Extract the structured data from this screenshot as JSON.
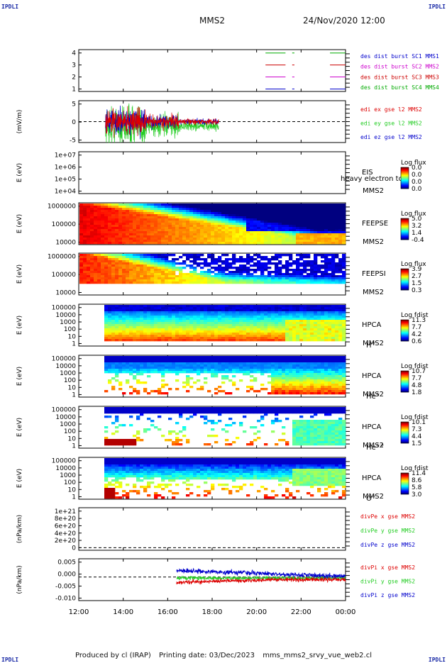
{
  "corner_labels": {
    "top_left": "IPDLI",
    "top_right": "IPDLI",
    "bottom_left": "IPDLI",
    "bottom_right": "IPDLI"
  },
  "header": {
    "spacecraft": "MMS2",
    "datetime": "24/Nov/2020 12:00"
  },
  "footer": {
    "produced_by": "Produced by cl (IRAP)",
    "printing_date": "Printing date: 03/Dec/2023",
    "filename": "mms_mms2_srvy_vue_web2.cl"
  },
  "colors": {
    "mms1": "#0000cc",
    "mms2": "#cc00cc",
    "mms3": "#cc0000",
    "mms4": "#00aa00",
    "x": "#dd0000",
    "y": "#22cc22",
    "z": "#0000cc",
    "label": "#1a2aa6"
  },
  "chart_data": [
    {
      "panel": "burst",
      "type": "line",
      "yticks": [
        "4",
        "3",
        "2",
        "1"
      ],
      "legend": [
        {
          "text": "des dist burst SC1 MMS1",
          "color": "#0000cc"
        },
        {
          "text": "des dist burst SC2 MMS2",
          "color": "#cc00cc"
        },
        {
          "text": "des dist burst SC3 MMS3",
          "color": "#cc0000"
        },
        {
          "text": "des dist burst SC4 MMS4",
          "color": "#00aa00"
        }
      ],
      "series": [
        {
          "sc": 4,
          "color": "#00aa00",
          "segments": [
            [
              20.4,
              21.3
            ],
            [
              21.6,
              21.7
            ],
            [
              23.3,
              24.0
            ]
          ]
        },
        {
          "sc": 3,
          "color": "#cc0000",
          "segments": [
            [
              20.4,
              21.3
            ],
            [
              21.6,
              21.7
            ],
            [
              23.3,
              24.0
            ]
          ]
        },
        {
          "sc": 2,
          "color": "#cc00cc",
          "segments": [
            [
              20.4,
              21.3
            ],
            [
              21.6,
              21.7
            ],
            [
              23.3,
              24.0
            ]
          ]
        },
        {
          "sc": 1,
          "color": "#0000cc",
          "segments": [
            [
              20.4,
              21.3
            ],
            [
              21.6,
              21.7
            ],
            [
              23.3,
              24.0
            ]
          ]
        }
      ]
    },
    {
      "panel": "efield",
      "type": "line",
      "ylabel": "(mV/m)",
      "yticks": [
        "5",
        "0",
        "-5"
      ],
      "ylim": [
        -7,
        7
      ],
      "legend": [
        {
          "text": "edi ex gse l2 MMS2",
          "color": "#dd0000"
        },
        {
          "text": "edi ey gse l2 MMS2",
          "color": "#22cc22"
        },
        {
          "text": "edi ez gse l2 MMS2",
          "color": "#0000cc"
        }
      ],
      "data_range": [
        13.2,
        18.3
      ]
    },
    {
      "panel": "eis",
      "type": "heatmap",
      "ylabel": "E (eV)",
      "yticks": [
        "1e+07",
        "1e+06",
        "1e+05",
        "1e+04"
      ],
      "instrument": "EIS",
      "sc": "MMS2",
      "overlay": "heavy electron to",
      "colorbar": {
        "title": "Log flux",
        "ticks": [
          "0.0",
          "0.0",
          "0.0",
          "0.0"
        ]
      }
    },
    {
      "panel": "feeps_e",
      "type": "heatmap",
      "ylabel": "E (eV)",
      "yticks": [
        "1000000",
        "100000",
        "10000"
      ],
      "instrument": "FEEPSE",
      "sc": "MMS2",
      "colorbar": {
        "title": "Log flux",
        "ticks": [
          "5.0",
          "3.2",
          "1.4",
          "-0.4"
        ]
      }
    },
    {
      "panel": "feeps_i",
      "type": "heatmap",
      "ylabel": "E (eV)",
      "yticks": [
        "1000000",
        "100000",
        "10000"
      ],
      "instrument": "FEEPSI",
      "sc": "MMS2",
      "colorbar": {
        "title": "Log flux",
        "ticks": [
          "3.9",
          "2.7",
          "1.5",
          "0.3"
        ]
      }
    },
    {
      "panel": "hpca_h",
      "type": "heatmap",
      "ylabel": "E (eV)",
      "yticks": [
        "100000",
        "10000",
        "1000",
        "100",
        "10",
        "1"
      ],
      "instrument": "HPCA",
      "sc": "MMS2",
      "species": "H",
      "charge": "+",
      "colorbar": {
        "title": "Log fdist",
        "ticks": [
          "11.3",
          "7.7",
          "4.2",
          "0.6"
        ]
      }
    },
    {
      "panel": "hpca_he1",
      "type": "heatmap",
      "ylabel": "E (eV)",
      "yticks": [
        "100000",
        "10000",
        "1000",
        "100",
        "10",
        "1"
      ],
      "instrument": "HPCA",
      "sc": "MMS2",
      "species": "He",
      "charge": "+",
      "colorbar": {
        "title": "Log fdist",
        "ticks": [
          "10.7",
          "7.7",
          "4.8",
          "1.8"
        ]
      }
    },
    {
      "panel": "hpca_he2",
      "type": "heatmap",
      "ylabel": "E (eV)",
      "yticks": [
        "100000",
        "10000",
        "1000",
        "100",
        "10",
        "1"
      ],
      "instrument": "HPCA",
      "sc": "MMS2",
      "species": "He",
      "charge": "++",
      "colorbar": {
        "title": "Log fdist",
        "ticks": [
          "10.1",
          "7.3",
          "4.4",
          "1.5"
        ]
      }
    },
    {
      "panel": "hpca_o",
      "type": "heatmap",
      "ylabel": "E (eV)",
      "yticks": [
        "100000",
        "10000",
        "1000",
        "100",
        "10",
        "1"
      ],
      "instrument": "HPCA",
      "sc": "MMS2",
      "species": "O",
      "charge": "+",
      "colorbar": {
        "title": "Log fdist",
        "ticks": [
          "11.4",
          "8.6",
          "5.8",
          "3.0"
        ]
      }
    },
    {
      "panel": "divpe",
      "type": "line",
      "ylabel": "(nPa/km)",
      "yticks": [
        "1e+21",
        "8e+20",
        "6e+20",
        "4e+20",
        "2e+20",
        "0"
      ],
      "legend": [
        {
          "text": "divPe x gse MMS2",
          "color": "#dd0000"
        },
        {
          "text": "divPe y gse MMS2",
          "color": "#22cc22"
        },
        {
          "text": "divPe z gse MMS2",
          "color": "#0000cc"
        }
      ]
    },
    {
      "panel": "divpi",
      "type": "line",
      "ylabel": "(nPa/km)",
      "yticks": [
        "0.005",
        "0.000",
        "-0.005",
        "-0.010"
      ],
      "ylim": [
        -0.011,
        0.0085
      ],
      "legend": [
        {
          "text": "divPi x gse MMS2",
          "color": "#dd0000"
        },
        {
          "text": "divPi y gse MMS2",
          "color": "#22cc22"
        },
        {
          "text": "divPi z gse MMS2",
          "color": "#0000cc"
        }
      ],
      "data_range": [
        16.4,
        24.0
      ]
    }
  ],
  "xaxis": {
    "ticks": [
      "12:00",
      "14:00",
      "16:00",
      "18:00",
      "20:00",
      "22:00",
      "00:00"
    ],
    "range_hours": [
      12,
      24
    ]
  }
}
